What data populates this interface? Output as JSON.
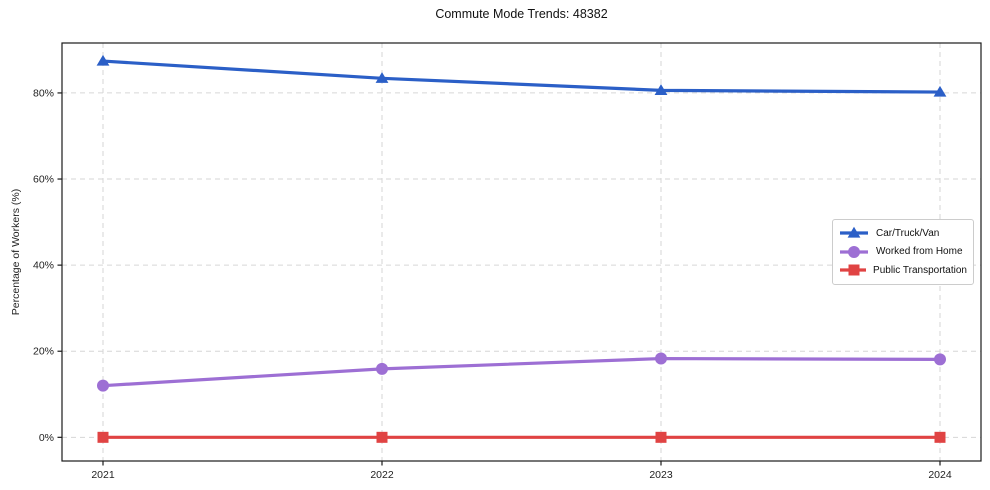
{
  "chart_data": {
    "type": "line",
    "title": "Commute Mode Trends: 48382",
    "xlabel": "",
    "ylabel": "Percentage of Workers (%)",
    "x": [
      2021,
      2022,
      2023,
      2024
    ],
    "xtick_labels": [
      "2021",
      "2022",
      "2023",
      "2024"
    ],
    "yticks": [
      0,
      20,
      40,
      60,
      80
    ],
    "ytick_labels": [
      "0%",
      "20%",
      "40%",
      "60%",
      "80%"
    ],
    "ylim": [
      -5.5,
      91.6
    ],
    "grid": true,
    "grid_style": "dashed",
    "legend_position": "center-right",
    "series": [
      {
        "name": "Car/Truck/Van",
        "marker": "triangle",
        "color": "#2b5fc7",
        "values": [
          87.4,
          83.4,
          80.6,
          80.2
        ]
      },
      {
        "name": "Worked from Home",
        "marker": "circle",
        "color": "#9d6fd4",
        "values": [
          12.0,
          15.9,
          18.3,
          18.1
        ]
      },
      {
        "name": "Public Transportation",
        "marker": "square",
        "color": "#e04343",
        "values": [
          0.0,
          0.0,
          0.0,
          0.0
        ]
      }
    ]
  },
  "colors": {
    "background": "#ffffff",
    "grid": "#d6d6d6",
    "spine": "#1a1a1a",
    "tick_label": "#222222",
    "title_text": "#111111",
    "legend_border": "#cccccc"
  }
}
